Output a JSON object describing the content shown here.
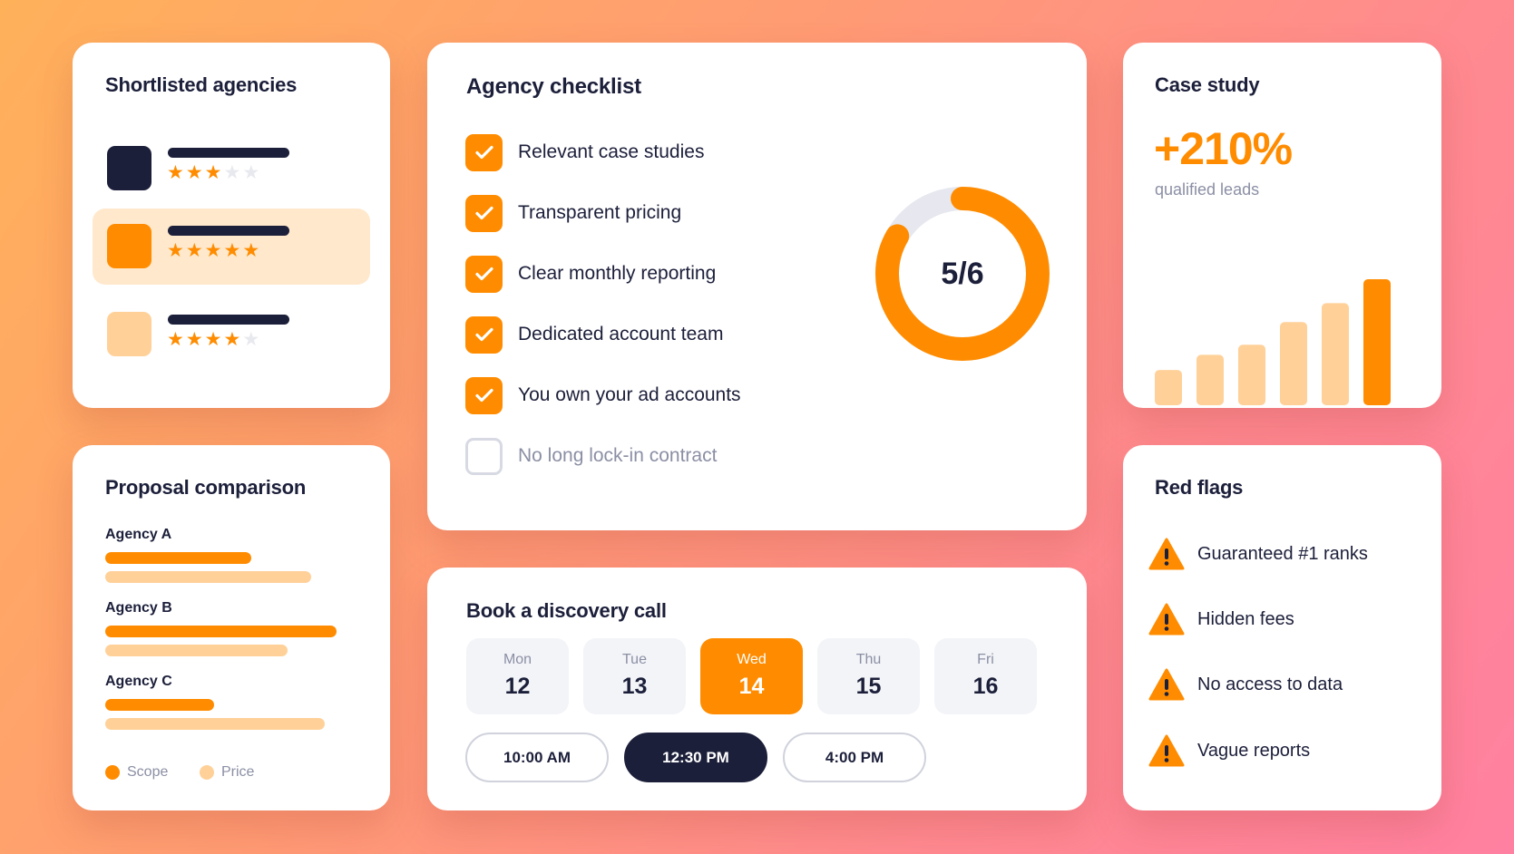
{
  "shortlist": {
    "title": "Shortlisted agencies",
    "agencies": [
      {
        "logo_color": "#1c1f3a",
        "rating": 3,
        "selected": false
      },
      {
        "logo_color": "#ff8c00",
        "rating": 5,
        "selected": true
      },
      {
        "logo_color": "#ffd199",
        "rating": 4,
        "selected": false
      }
    ]
  },
  "checklist": {
    "title": "Agency checklist",
    "items": [
      {
        "label": "Relevant case studies",
        "checked": true
      },
      {
        "label": "Transparent pricing",
        "checked": true
      },
      {
        "label": "Clear monthly reporting",
        "checked": true
      },
      {
        "label": "Dedicated account team",
        "checked": true
      },
      {
        "label": "You own your ad accounts",
        "checked": true
      },
      {
        "label": "No long lock-in contract",
        "checked": false
      }
    ],
    "progress_label": "5/6",
    "progress_fraction": 0.8333
  },
  "case_study": {
    "title": "Case study",
    "metric": "+210%",
    "caption": "qualified leads",
    "bars": [
      0.28,
      0.4,
      0.48,
      0.66,
      0.81,
      1.0
    ],
    "highlight_index": 5
  },
  "proposal": {
    "title": "Proposal comparison",
    "agencies": [
      {
        "name": "Agency A",
        "scope": 0.63,
        "price": 0.89
      },
      {
        "name": "Agency B",
        "scope": 1.0,
        "price": 0.79
      },
      {
        "name": "Agency C",
        "scope": 0.47,
        "price": 0.95
      }
    ],
    "legend": {
      "scope": "Scope",
      "price": "Price"
    }
  },
  "booking": {
    "title": "Book a discovery call",
    "days": [
      {
        "name": "Mon",
        "num": "12",
        "active": false
      },
      {
        "name": "Tue",
        "num": "13",
        "active": false
      },
      {
        "name": "Wed",
        "num": "14",
        "active": true
      },
      {
        "name": "Thu",
        "num": "15",
        "active": false
      },
      {
        "name": "Fri",
        "num": "16",
        "active": false
      }
    ],
    "times": [
      {
        "label": "10:00 AM",
        "active": false
      },
      {
        "label": "12:30 PM",
        "active": true
      },
      {
        "label": "4:00 PM",
        "active": false
      }
    ]
  },
  "red_flags": {
    "title": "Red flags",
    "items": [
      "Guaranteed #1 ranks",
      "Hidden fees",
      "No access to data",
      "Vague reports"
    ]
  },
  "colors": {
    "accent": "#ff8c00",
    "accent_light": "#ffd199",
    "accent_bg": "#ffe8cc",
    "navy": "#1c1f3a",
    "muted": "#8b8fa4",
    "track": "#e6e7ef"
  },
  "icons": {
    "checkbox_checked": "check-icon",
    "warning": "warning-icon"
  }
}
